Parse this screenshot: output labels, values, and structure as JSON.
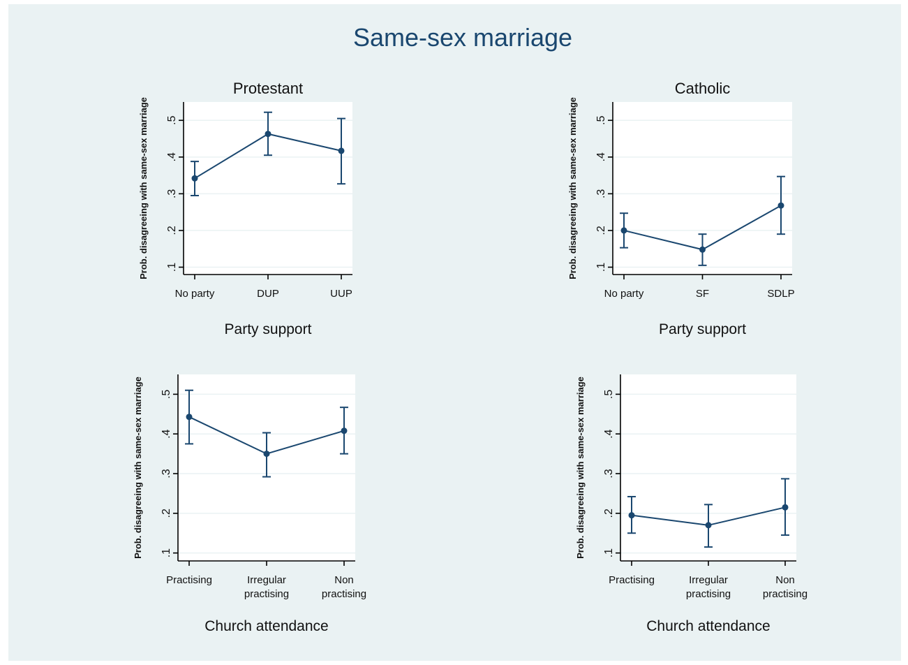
{
  "figure_title": "Same-sex marriage",
  "chart_data": [
    {
      "type": "line",
      "title": "Protestant",
      "xlabel": "Party support",
      "ylabel": "Prob. disagreeing with same-sex marriage",
      "categories": [
        [
          "No party"
        ],
        [
          "DUP"
        ],
        [
          "UUP"
        ]
      ],
      "ylim": [
        0.08,
        0.55
      ],
      "yticks": [
        0.1,
        0.2,
        0.3,
        0.4,
        0.5
      ],
      "ytick_labels": [
        ".1",
        ".2",
        ".3",
        ".4",
        ".5"
      ],
      "grid": true,
      "series": [
        {
          "values": [
            0.342,
            0.463,
            0.417
          ],
          "lower": [
            0.295,
            0.405,
            0.327
          ],
          "upper": [
            0.388,
            0.522,
            0.505
          ]
        }
      ],
      "colors": {
        "series": "#1a476f"
      }
    },
    {
      "type": "line",
      "title": "Catholic",
      "xlabel": "Party support",
      "ylabel": "Prob. disagreeing with same-sex marriage",
      "categories": [
        [
          "No party"
        ],
        [
          "SF"
        ],
        [
          "SDLP"
        ]
      ],
      "ylim": [
        0.08,
        0.55
      ],
      "yticks": [
        0.1,
        0.2,
        0.3,
        0.4,
        0.5
      ],
      "ytick_labels": [
        ".1",
        ".2",
        ".3",
        ".4",
        ".5"
      ],
      "grid": true,
      "series": [
        {
          "values": [
            0.2,
            0.148,
            0.268
          ],
          "lower": [
            0.153,
            0.105,
            0.19
          ],
          "upper": [
            0.247,
            0.19,
            0.347
          ]
        }
      ],
      "colors": {
        "series": "#1a476f"
      }
    },
    {
      "type": "line",
      "title": "",
      "xlabel": "Church attendance",
      "ylabel": "Prob. disagreeing with same-sex marriage",
      "categories": [
        [
          "Practising"
        ],
        [
          "Irregular",
          "practising"
        ],
        [
          "Non",
          "practising"
        ]
      ],
      "ylim": [
        0.08,
        0.55
      ],
      "yticks": [
        0.1,
        0.2,
        0.3,
        0.4,
        0.5
      ],
      "ytick_labels": [
        ".1",
        ".2",
        ".3",
        ".4",
        ".5"
      ],
      "grid": true,
      "series": [
        {
          "values": [
            0.443,
            0.35,
            0.408
          ],
          "lower": [
            0.375,
            0.292,
            0.35
          ],
          "upper": [
            0.51,
            0.403,
            0.467
          ]
        }
      ],
      "colors": {
        "series": "#1a476f"
      }
    },
    {
      "type": "line",
      "title": "",
      "xlabel": "Church attendance",
      "ylabel": "Prob. disagreeing with same-sex marriage",
      "categories": [
        [
          "Practising"
        ],
        [
          "Irregular",
          "practising"
        ],
        [
          "Non",
          "practising"
        ]
      ],
      "ylim": [
        0.08,
        0.55
      ],
      "yticks": [
        0.1,
        0.2,
        0.3,
        0.4,
        0.5
      ],
      "ytick_labels": [
        ".1",
        ".2",
        ".3",
        ".4",
        ".5"
      ],
      "grid": true,
      "series": [
        {
          "values": [
            0.195,
            0.17,
            0.215
          ],
          "lower": [
            0.15,
            0.115,
            0.145
          ],
          "upper": [
            0.242,
            0.222,
            0.287
          ]
        }
      ],
      "colors": {
        "series": "#1a476f"
      }
    }
  ]
}
